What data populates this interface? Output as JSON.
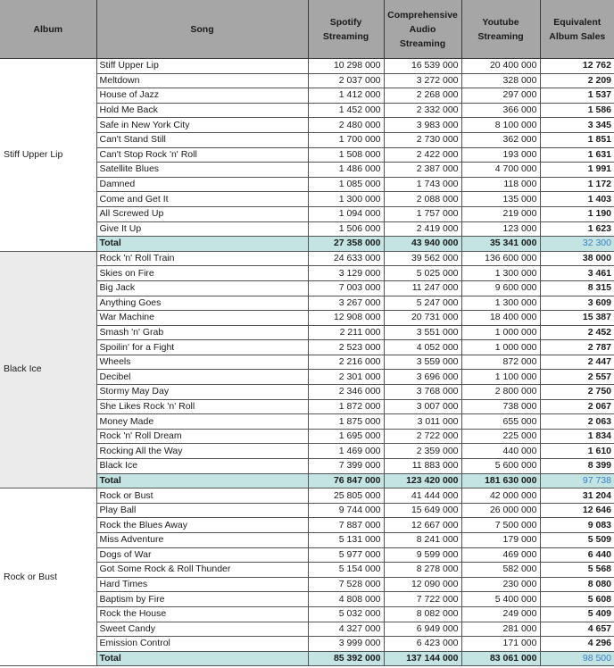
{
  "headers": {
    "album": "Album",
    "song": "Song",
    "spotify": "Spotify Streaming",
    "comprehensive": "Comprehensive Audio Streaming",
    "youtube": "Youtube Streaming",
    "equivalent": "Equivalent Album Sales"
  },
  "albums": [
    {
      "name": "Stiff Upper Lip",
      "songs": [
        [
          "Stiff Upper Lip",
          "10 298 000",
          "16 539 000",
          "20 400 000",
          "12 762"
        ],
        [
          "Meltdown",
          "2 037 000",
          "3 272 000",
          "328 000",
          "2 209"
        ],
        [
          "House of Jazz",
          "1 412 000",
          "2 268 000",
          "297 000",
          "1 537"
        ],
        [
          "Hold Me Back",
          "1 452 000",
          "2 332 000",
          "366 000",
          "1 586"
        ],
        [
          "Safe in New York City",
          "2 480 000",
          "3 983 000",
          "8 100 000",
          "3 345"
        ],
        [
          "Can't Stand Still",
          "1 700 000",
          "2 730 000",
          "362 000",
          "1 851"
        ],
        [
          "Can't Stop Rock 'n' Roll",
          "1 508 000",
          "2 422 000",
          "193 000",
          "1 631"
        ],
        [
          "Satellite Blues",
          "1 486 000",
          "2 387 000",
          "4 700 000",
          "1 991"
        ],
        [
          "Damned",
          "1 085 000",
          "1 743 000",
          "118 000",
          "1 172"
        ],
        [
          "Come and Get It",
          "1 300 000",
          "2 088 000",
          "135 000",
          "1 403"
        ],
        [
          "All Screwed Up",
          "1 094 000",
          "1 757 000",
          "219 000",
          "1 190"
        ],
        [
          "Give It Up",
          "1 506 000",
          "2 419 000",
          "123 000",
          "1 623"
        ]
      ],
      "total": [
        "Total",
        "27 358 000",
        "43 940 000",
        "35 341 000",
        "32 300"
      ]
    },
    {
      "name": "Black Ice",
      "songs": [
        [
          "Rock 'n' Roll Train",
          "24 633 000",
          "39 562 000",
          "136 600 000",
          "38 000"
        ],
        [
          "Skies on Fire",
          "3 129 000",
          "5 025 000",
          "1 300 000",
          "3 461"
        ],
        [
          "Big Jack",
          "7 003 000",
          "11 247 000",
          "9 600 000",
          "8 315"
        ],
        [
          "Anything Goes",
          "3 267 000",
          "5 247 000",
          "1 300 000",
          "3 609"
        ],
        [
          "War Machine",
          "12 908 000",
          "20 731 000",
          "18 400 000",
          "15 387"
        ],
        [
          "Smash 'n' Grab",
          "2 211 000",
          "3 551 000",
          "1 000 000",
          "2 452"
        ],
        [
          "Spoilin' for a Fight",
          "2 523 000",
          "4 052 000",
          "1 000 000",
          "2 787"
        ],
        [
          "Wheels",
          "2 216 000",
          "3 559 000",
          "872 000",
          "2 447"
        ],
        [
          "Decibel",
          "2 301 000",
          "3 696 000",
          "1 100 000",
          "2 557"
        ],
        [
          "Stormy May Day",
          "2 346 000",
          "3 768 000",
          "2 800 000",
          "2 750"
        ],
        [
          "She Likes Rock 'n' Roll",
          "1 872 000",
          "3 007 000",
          "738 000",
          "2 067"
        ],
        [
          "Money Made",
          "1 875 000",
          "3 011 000",
          "655 000",
          "2 063"
        ],
        [
          "Rock 'n' Roll Dream",
          "1 695 000",
          "2 722 000",
          "225 000",
          "1 834"
        ],
        [
          "Rocking All the Way",
          "1 469 000",
          "2 359 000",
          "440 000",
          "1 610"
        ],
        [
          "Black Ice",
          "7 399 000",
          "11 883 000",
          "5 600 000",
          "8 399"
        ]
      ],
      "total": [
        "Total",
        "76 847 000",
        "123 420 000",
        "181 630 000",
        "97 738"
      ]
    },
    {
      "name": "Rock or Bust",
      "songs": [
        [
          "Rock or Bust",
          "25 805 000",
          "41 444 000",
          "42 000 000",
          "31 204"
        ],
        [
          "Play Ball",
          "9 744 000",
          "15 649 000",
          "26 000 000",
          "12 646"
        ],
        [
          "Rock the Blues Away",
          "7 887 000",
          "12 667 000",
          "7 500 000",
          "9 083"
        ],
        [
          "Miss Adventure",
          "5 131 000",
          "8 241 000",
          "179 000",
          "5 509"
        ],
        [
          "Dogs of War",
          "5 977 000",
          "9 599 000",
          "469 000",
          "6 440"
        ],
        [
          "Got Some Rock & Roll Thunder",
          "5 154 000",
          "8 278 000",
          "582 000",
          "5 568"
        ],
        [
          "Hard Times",
          "7 528 000",
          "12 090 000",
          "230 000",
          "8 080"
        ],
        [
          "Baptism by Fire",
          "4 808 000",
          "7 722 000",
          "5 400 000",
          "5 608"
        ],
        [
          "Rock the House",
          "5 032 000",
          "8 082 000",
          "249 000",
          "5 409"
        ],
        [
          "Sweet Candy",
          "4 327 000",
          "6 949 000",
          "281 000",
          "4 657"
        ],
        [
          "Emission Control",
          "3 999 000",
          "6 423 000",
          "171 000",
          "4 296"
        ]
      ],
      "total": [
        "Total",
        "85 392 000",
        "137 144 000",
        "83 061 000",
        "98 500"
      ]
    }
  ],
  "colors": {
    "header_bg": "#a6a6a6",
    "total_bg": "#c3e4e3",
    "total_equiv_text": "#3a7fc1",
    "alt_album_bg": "#ebebeb"
  }
}
